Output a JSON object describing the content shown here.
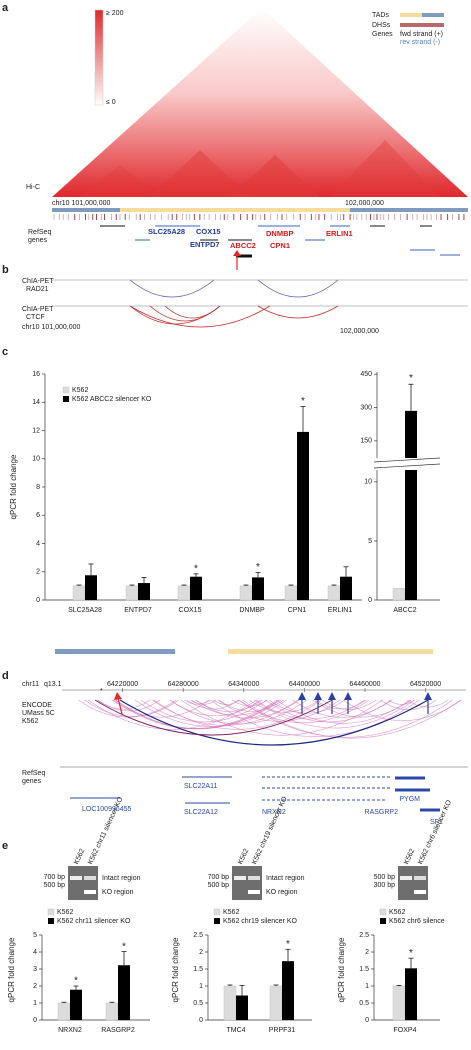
{
  "panel_a": {
    "letter": "a",
    "hic_label": "Hi-C",
    "scale_max": "≥ 200",
    "scale_min": "≤ 0",
    "legend": [
      "TADs",
      "DHSs",
      "Genes",
      "fwd strand (+)",
      "rev strand (-)"
    ],
    "coord_left": "chr10 101,000,000",
    "coord_right": "102,000,000",
    "refseq_label": [
      "RefSeq",
      "genes"
    ],
    "genes": [
      {
        "name": "SLC25A28",
        "color": "#1f3d99"
      },
      {
        "name": "COX15",
        "color": "#1f3d99"
      },
      {
        "name": "ENTPD7",
        "color": "#1f3d99"
      },
      {
        "name": "ABCC2",
        "color": "#d7191c"
      },
      {
        "name": "DNMBP",
        "color": "#d7191c"
      },
      {
        "name": "CPN1",
        "color": "#d7191c"
      },
      {
        "name": "ERLIN1",
        "color": "#d7191c"
      }
    ]
  },
  "panel_b": {
    "letter": "b",
    "tracks": [
      [
        "ChIA-PET",
        "RAD21"
      ],
      [
        "ChIA-PET",
        "CTCF"
      ]
    ],
    "coord_left": "chr10 101,000,000",
    "coord_right": "102,000,000"
  },
  "panel_c": {
    "letter": "c",
    "y_label": "qPCR fold change",
    "categories": [
      "SLC25A28",
      "ENTPD7",
      "COX15",
      "DNMBP",
      "CPN1",
      "ERLIN1"
    ],
    "series": [
      {
        "name": "K562",
        "color": "#dcdcdc",
        "values": [
          1,
          1,
          1,
          1,
          1,
          1
        ],
        "errors": [
          0.06,
          0.06,
          0.06,
          0.06,
          0.06,
          0.06
        ]
      },
      {
        "name": "K562 ABCC2 silencer KO",
        "color": "#000000",
        "values": [
          1.75,
          1.2,
          1.65,
          1.6,
          11.9,
          1.65
        ],
        "errors": [
          0.8,
          0.4,
          0.2,
          0.35,
          1.8,
          0.7
        ]
      }
    ],
    "ylim": [
      0,
      16
    ],
    "yticks": [
      0,
      2,
      4,
      6,
      8,
      10,
      12,
      14,
      16
    ],
    "sig_mark": "*",
    "significant": [
      false,
      false,
      true,
      true,
      true,
      false
    ],
    "group_colors": [
      "#7f9bc0",
      "#f6dc9c"
    ],
    "inset": {
      "categories": [
        "ABCC2"
      ],
      "values_k562": [
        1
      ],
      "errors_k562": [
        0.06
      ],
      "values_ko": [
        285
      ],
      "errors_ko": [
        120
      ],
      "ylim_lower": [
        0,
        11
      ],
      "yticks_lower": [
        0,
        5,
        10
      ],
      "ylim_upper": [
        100,
        460
      ],
      "yticks_upper": [
        150,
        300,
        450
      ],
      "significant": [
        true
      ]
    }
  },
  "panel_d": {
    "letter": "d",
    "chrom": "chr11",
    "band": "q13.1",
    "xlim": [
      64160000,
      64560000
    ],
    "xticks": [
      64220000,
      64280000,
      64340000,
      64400000,
      64460000,
      64520000
    ],
    "marker": "*",
    "track_label": [
      "ENCODE",
      "UMass 5C",
      "K562"
    ],
    "refseq_label": [
      "RefSeq",
      "genes"
    ],
    "genes": [
      "LOC100996455",
      "SLC22A11",
      "SLC22A12",
      "NRXN2",
      "RASGRP2",
      "PYGM",
      "SF1"
    ]
  },
  "panel_e": {
    "letter": "e",
    "gel_regions": [
      "Intact region",
      "KO region"
    ],
    "charts": [
      {
        "lanes": [
          "K562",
          "K562 chr11 silencer KO"
        ],
        "ladder": [
          "700 bp",
          "500 bp"
        ],
        "categories": [
          "NRXN2",
          "RASGRP2"
        ],
        "series": [
          {
            "name": "K562",
            "color": "#dcdcdc",
            "values": [
              1,
              1
            ],
            "errors": [
              0.05,
              0.05
            ]
          },
          {
            "name": "K562 chr11 silencer KO",
            "color": "#000000",
            "values": [
              1.78,
              3.22
            ],
            "errors": [
              0.22,
              0.8
            ]
          }
        ],
        "ylim": [
          0,
          5
        ],
        "yticks": [
          0,
          1,
          2,
          3,
          4,
          5
        ],
        "sig_mark": "*",
        "significant": [
          true,
          true
        ]
      },
      {
        "lanes": [
          "K562",
          "K562 chr19 silencer KO"
        ],
        "ladder": [
          "700 bp",
          "500 bp"
        ],
        "categories": [
          "TMC4",
          "PRPF31"
        ],
        "series": [
          {
            "name": "K562",
            "color": "#dcdcdc",
            "values": [
              1,
              1
            ],
            "errors": [
              0.03,
              0.03
            ]
          },
          {
            "name": "K562 chr19 silencer KO",
            "color": "#000000",
            "values": [
              0.72,
              1.73
            ],
            "errors": [
              0.3,
              0.35
            ]
          }
        ],
        "ylim": [
          0,
          2.5
        ],
        "yticks": [
          0,
          0.5,
          1,
          1.5,
          2,
          2.5
        ],
        "sig_mark": "*",
        "significant": [
          false,
          true
        ]
      },
      {
        "lanes": [
          "K562",
          "K562 chr6 silencer KO"
        ],
        "ladder": [
          "500 bp",
          "300 bp"
        ],
        "categories": [
          "FOXP4"
        ],
        "series": [
          {
            "name": "K562",
            "color": "#dcdcdc",
            "values": [
              1
            ],
            "errors": [
              0.02
            ]
          },
          {
            "name": "K562 chr6 silence",
            "color": "#000000",
            "values": [
              1.52
            ],
            "errors": [
              0.3
            ]
          }
        ],
        "ylim": [
          0,
          2.5
        ],
        "yticks": [
          0,
          0.5,
          1,
          1.5,
          2,
          2.5
        ],
        "sig_mark": "*",
        "significant": [
          true
        ]
      }
    ]
  }
}
